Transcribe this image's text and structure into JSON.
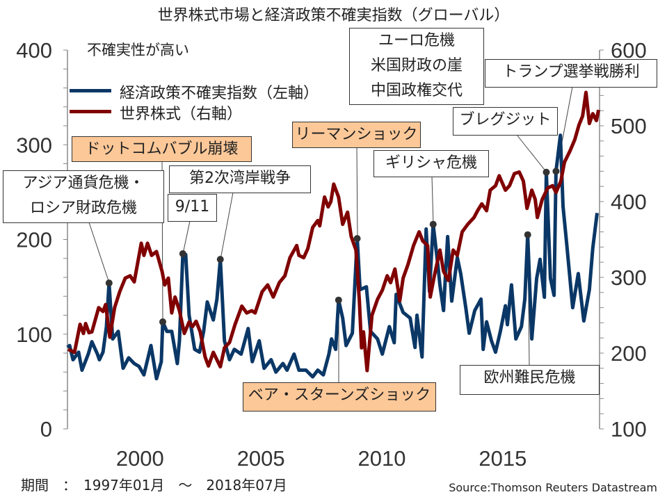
{
  "chart_data": {
    "type": "line",
    "title": "世界株式市場と経済政策不確実指数（グローバル）",
    "note": "不確実性が高い",
    "x_ticks": [
      "2000",
      "2005",
      "2010",
      "2015"
    ],
    "x_tick_years": [
      2000,
      2005,
      2010,
      2015
    ],
    "xlim": [
      1997,
      2019
    ],
    "left_axis": {
      "ylim": [
        0,
        400
      ],
      "ticks": [
        "400",
        "300",
        "200",
        "100",
        "0"
      ],
      "tick_values": [
        400,
        300,
        200,
        100,
        0
      ]
    },
    "right_axis": {
      "ylim": [
        100,
        600
      ],
      "ticks": [
        "600",
        "500",
        "400",
        "300",
        "200",
        "100"
      ],
      "tick_values": [
        600,
        500,
        400,
        300,
        200,
        100
      ]
    },
    "legend": [
      {
        "label": "経済政策不確実指数（左軸）",
        "color": "#0a3766"
      },
      {
        "label": "世界株式（右軸）",
        "color": "#800000"
      }
    ],
    "legend_position": "top-left",
    "series": [
      {
        "name": "経済政策不確実指数（左軸）",
        "axis": "left",
        "color": "#0a3766",
        "points": [
          [
            1997.0,
            86
          ],
          [
            1997.09,
            88
          ],
          [
            1997.23,
            73
          ],
          [
            1997.46,
            81
          ],
          [
            1997.6,
            62
          ],
          [
            1997.86,
            79
          ],
          [
            1998.01,
            92
          ],
          [
            1998.24,
            79
          ],
          [
            1998.32,
            73
          ],
          [
            1998.47,
            81
          ],
          [
            1998.61,
            108
          ],
          [
            1998.72,
            154
          ],
          [
            1998.87,
            95
          ],
          [
            1999.1,
            103
          ],
          [
            1999.3,
            64
          ],
          [
            1999.53,
            75
          ],
          [
            1999.76,
            69
          ],
          [
            1999.96,
            66
          ],
          [
            2000.16,
            57
          ],
          [
            2000.45,
            88
          ],
          [
            2000.68,
            53
          ],
          [
            2000.88,
            71
          ],
          [
            2000.94,
            113
          ],
          [
            2001.11,
            103
          ],
          [
            2001.31,
            103
          ],
          [
            2001.54,
            69
          ],
          [
            2001.63,
            93
          ],
          [
            2001.77,
            185
          ],
          [
            2001.89,
            184
          ],
          [
            2002.03,
            120
          ],
          [
            2002.26,
            84
          ],
          [
            2002.46,
            81
          ],
          [
            2002.63,
            103
          ],
          [
            2002.78,
            134
          ],
          [
            2003.03,
            115
          ],
          [
            2003.18,
            137
          ],
          [
            2003.32,
            179
          ],
          [
            2003.49,
            93
          ],
          [
            2003.7,
            73
          ],
          [
            2003.9,
            84
          ],
          [
            2004.18,
            79
          ],
          [
            2004.47,
            106
          ],
          [
            2004.64,
            71
          ],
          [
            2004.93,
            93
          ],
          [
            2005.13,
            64
          ],
          [
            2005.42,
            73
          ],
          [
            2005.62,
            60
          ],
          [
            2005.91,
            69
          ],
          [
            2006.08,
            62
          ],
          [
            2006.37,
            79
          ],
          [
            2006.57,
            62
          ],
          [
            2006.86,
            62
          ],
          [
            2007.14,
            55
          ],
          [
            2007.35,
            62
          ],
          [
            2007.58,
            57
          ],
          [
            2007.81,
            79
          ],
          [
            2007.92,
            95
          ],
          [
            2008.09,
            84
          ],
          [
            2008.21,
            136
          ],
          [
            2008.38,
            117
          ],
          [
            2008.52,
            88
          ],
          [
            2008.78,
            101
          ],
          [
            2008.98,
            201
          ],
          [
            2009.1,
            147
          ],
          [
            2009.36,
            150
          ],
          [
            2009.53,
            103
          ],
          [
            2009.82,
            95
          ],
          [
            2010.02,
            79
          ],
          [
            2010.31,
            108
          ],
          [
            2010.51,
            91
          ],
          [
            2010.59,
            142
          ],
          [
            2010.88,
            123
          ],
          [
            2011.17,
            117
          ],
          [
            2011.37,
            86
          ],
          [
            2011.45,
            120
          ],
          [
            2011.66,
            76
          ],
          [
            2011.83,
            211
          ],
          [
            2011.97,
            145
          ],
          [
            2012.12,
            216
          ],
          [
            2012.32,
            172
          ],
          [
            2012.4,
            152
          ],
          [
            2012.55,
            125
          ],
          [
            2012.72,
            203
          ],
          [
            2012.89,
            135
          ],
          [
            2013.12,
            181
          ],
          [
            2013.26,
            164
          ],
          [
            2013.47,
            128
          ],
          [
            2013.61,
            101
          ],
          [
            2013.84,
            125
          ],
          [
            2014.1,
            137
          ],
          [
            2014.19,
            84
          ],
          [
            2014.33,
            113
          ],
          [
            2014.53,
            93
          ],
          [
            2014.7,
            81
          ],
          [
            2014.9,
            103
          ],
          [
            2015.11,
            130
          ],
          [
            2015.19,
            110
          ],
          [
            2015.36,
            152
          ],
          [
            2015.54,
            95
          ],
          [
            2015.77,
            108
          ],
          [
            2015.91,
            137
          ],
          [
            2016.03,
            205
          ],
          [
            2016.2,
            95
          ],
          [
            2016.4,
            159
          ],
          [
            2016.54,
            179
          ],
          [
            2016.72,
            139
          ],
          [
            2016.8,
            271
          ],
          [
            2016.97,
            159
          ],
          [
            2017.12,
            141
          ],
          [
            2017.2,
            272
          ],
          [
            2017.38,
            310
          ],
          [
            2017.49,
            235
          ],
          [
            2017.64,
            196
          ],
          [
            2017.89,
            128
          ],
          [
            2018.12,
            164
          ],
          [
            2018.35,
            114
          ],
          [
            2018.58,
            147
          ],
          [
            2018.72,
            191
          ],
          [
            2018.9,
            228
          ]
        ]
      },
      {
        "name": "世界株式（右軸）",
        "axis": "right",
        "color": "#800000",
        "points": [
          [
            1997.03,
            205
          ],
          [
            1997.29,
            201
          ],
          [
            1997.52,
            238
          ],
          [
            1997.66,
            226
          ],
          [
            1997.75,
            239
          ],
          [
            1997.89,
            227
          ],
          [
            1998.01,
            228
          ],
          [
            1998.29,
            260
          ],
          [
            1998.47,
            255
          ],
          [
            1998.58,
            264
          ],
          [
            1998.75,
            221
          ],
          [
            1998.95,
            260
          ],
          [
            1999.16,
            281
          ],
          [
            1999.39,
            299
          ],
          [
            1999.59,
            302
          ],
          [
            1999.76,
            294
          ],
          [
            2000.05,
            345
          ],
          [
            2000.16,
            329
          ],
          [
            2000.31,
            345
          ],
          [
            2000.48,
            329
          ],
          [
            2000.68,
            334
          ],
          [
            2000.91,
            308
          ],
          [
            2001.02,
            290
          ],
          [
            2001.17,
            299
          ],
          [
            2001.31,
            253
          ],
          [
            2001.45,
            274
          ],
          [
            2001.63,
            256
          ],
          [
            2001.83,
            226
          ],
          [
            2002.03,
            241
          ],
          [
            2002.17,
            235
          ],
          [
            2002.32,
            242
          ],
          [
            2002.49,
            228
          ],
          [
            2002.69,
            195
          ],
          [
            2002.83,
            183
          ],
          [
            2003.03,
            201
          ],
          [
            2003.32,
            182
          ],
          [
            2003.49,
            207
          ],
          [
            2003.7,
            214
          ],
          [
            2003.93,
            238
          ],
          [
            2004.21,
            262
          ],
          [
            2004.41,
            253
          ],
          [
            2004.62,
            256
          ],
          [
            2004.76,
            253
          ],
          [
            2005.05,
            281
          ],
          [
            2005.28,
            290
          ],
          [
            2005.51,
            274
          ],
          [
            2005.76,
            293
          ],
          [
            2005.99,
            302
          ],
          [
            2006.2,
            326
          ],
          [
            2006.48,
            342
          ],
          [
            2006.57,
            329
          ],
          [
            2006.77,
            326
          ],
          [
            2006.94,
            338
          ],
          [
            2007.14,
            366
          ],
          [
            2007.35,
            375
          ],
          [
            2007.43,
            368
          ],
          [
            2007.63,
            406
          ],
          [
            2007.78,
            393
          ],
          [
            2007.89,
            400
          ],
          [
            2008.01,
            423
          ],
          [
            2008.21,
            406
          ],
          [
            2008.38,
            370
          ],
          [
            2008.58,
            386
          ],
          [
            2008.73,
            354
          ],
          [
            2008.93,
            336
          ],
          [
            2009.07,
            269
          ],
          [
            2009.16,
            207
          ],
          [
            2009.24,
            228
          ],
          [
            2009.39,
            177
          ],
          [
            2009.59,
            250
          ],
          [
            2009.82,
            271
          ],
          [
            2010.02,
            283
          ],
          [
            2010.22,
            302
          ],
          [
            2010.36,
            293
          ],
          [
            2010.54,
            311
          ],
          [
            2010.74,
            269
          ],
          [
            2010.88,
            299
          ],
          [
            2011.08,
            317
          ],
          [
            2011.31,
            342
          ],
          [
            2011.54,
            360
          ],
          [
            2011.69,
            348
          ],
          [
            2011.89,
            342
          ],
          [
            2012.0,
            274
          ],
          [
            2012.17,
            302
          ],
          [
            2012.4,
            336
          ],
          [
            2012.55,
            308
          ],
          [
            2012.75,
            296
          ],
          [
            2012.95,
            336
          ],
          [
            2013.12,
            329
          ],
          [
            2013.32,
            360
          ],
          [
            2013.55,
            370
          ],
          [
            2013.81,
            379
          ],
          [
            2013.96,
            388
          ],
          [
            2014.13,
            397
          ],
          [
            2014.33,
            388
          ],
          [
            2014.48,
            415
          ],
          [
            2014.7,
            421
          ],
          [
            2014.85,
            434
          ],
          [
            2015.11,
            415
          ],
          [
            2015.28,
            421
          ],
          [
            2015.48,
            437
          ],
          [
            2015.68,
            439
          ],
          [
            2015.85,
            427
          ],
          [
            2016.0,
            391
          ],
          [
            2016.2,
            415
          ],
          [
            2016.34,
            403
          ],
          [
            2016.43,
            379
          ],
          [
            2016.63,
            403
          ],
          [
            2016.86,
            418
          ],
          [
            2017.06,
            421
          ],
          [
            2017.2,
            412
          ],
          [
            2017.4,
            427
          ],
          [
            2017.55,
            452
          ],
          [
            2017.78,
            467
          ],
          [
            2017.98,
            482
          ],
          [
            2018.15,
            501
          ],
          [
            2018.3,
            513
          ],
          [
            2018.44,
            544
          ],
          [
            2018.58,
            503
          ],
          [
            2018.72,
            516
          ],
          [
            2018.87,
            507
          ],
          [
            2018.96,
            521
          ]
        ]
      }
    ],
    "annotations": [
      {
        "lines": [
          "アジア通貨危機・",
          "ロシア財政危機"
        ],
        "year": 1998.72,
        "value": 154,
        "highlighted": false
      },
      {
        "lines": [
          "ドットコムバブル崩壊"
        ],
        "year": 2000.94,
        "value": 113,
        "highlighted": true
      },
      {
        "lines": [
          "9/11"
        ],
        "year": 2001.77,
        "value": 185,
        "highlighted": false
      },
      {
        "lines": [
          "第2次湾岸戦争"
        ],
        "year": 2003.32,
        "value": 179,
        "highlighted": false
      },
      {
        "lines": [
          "ベア・スターンズショック"
        ],
        "year": 2008.21,
        "value": 136,
        "highlighted": true
      },
      {
        "lines": [
          "リーマンショック"
        ],
        "year": 2008.98,
        "value": 201,
        "highlighted": true
      },
      {
        "lines": [
          "ユーロ危機",
          "米国財政の崖",
          "中国政権交代"
        ],
        "highlighted": false
      },
      {
        "lines": [
          "ギリシャ危機"
        ],
        "year": 2012.12,
        "value": 216,
        "highlighted": false
      },
      {
        "lines": [
          "欧州難民危機"
        ],
        "year": 2016.03,
        "value": 205,
        "highlighted": false
      },
      {
        "lines": [
          "ブレグジット"
        ],
        "year": 2016.8,
        "value": 271,
        "highlighted": false
      },
      {
        "lines": [
          "トランプ選挙戦勝利"
        ],
        "year": 2017.2,
        "value": 272,
        "highlighted": false
      }
    ]
  },
  "footer": {
    "period": "期間　：　1997年01月　～　2018年07月",
    "source": "Source:Thomson Reuters Datastream"
  }
}
